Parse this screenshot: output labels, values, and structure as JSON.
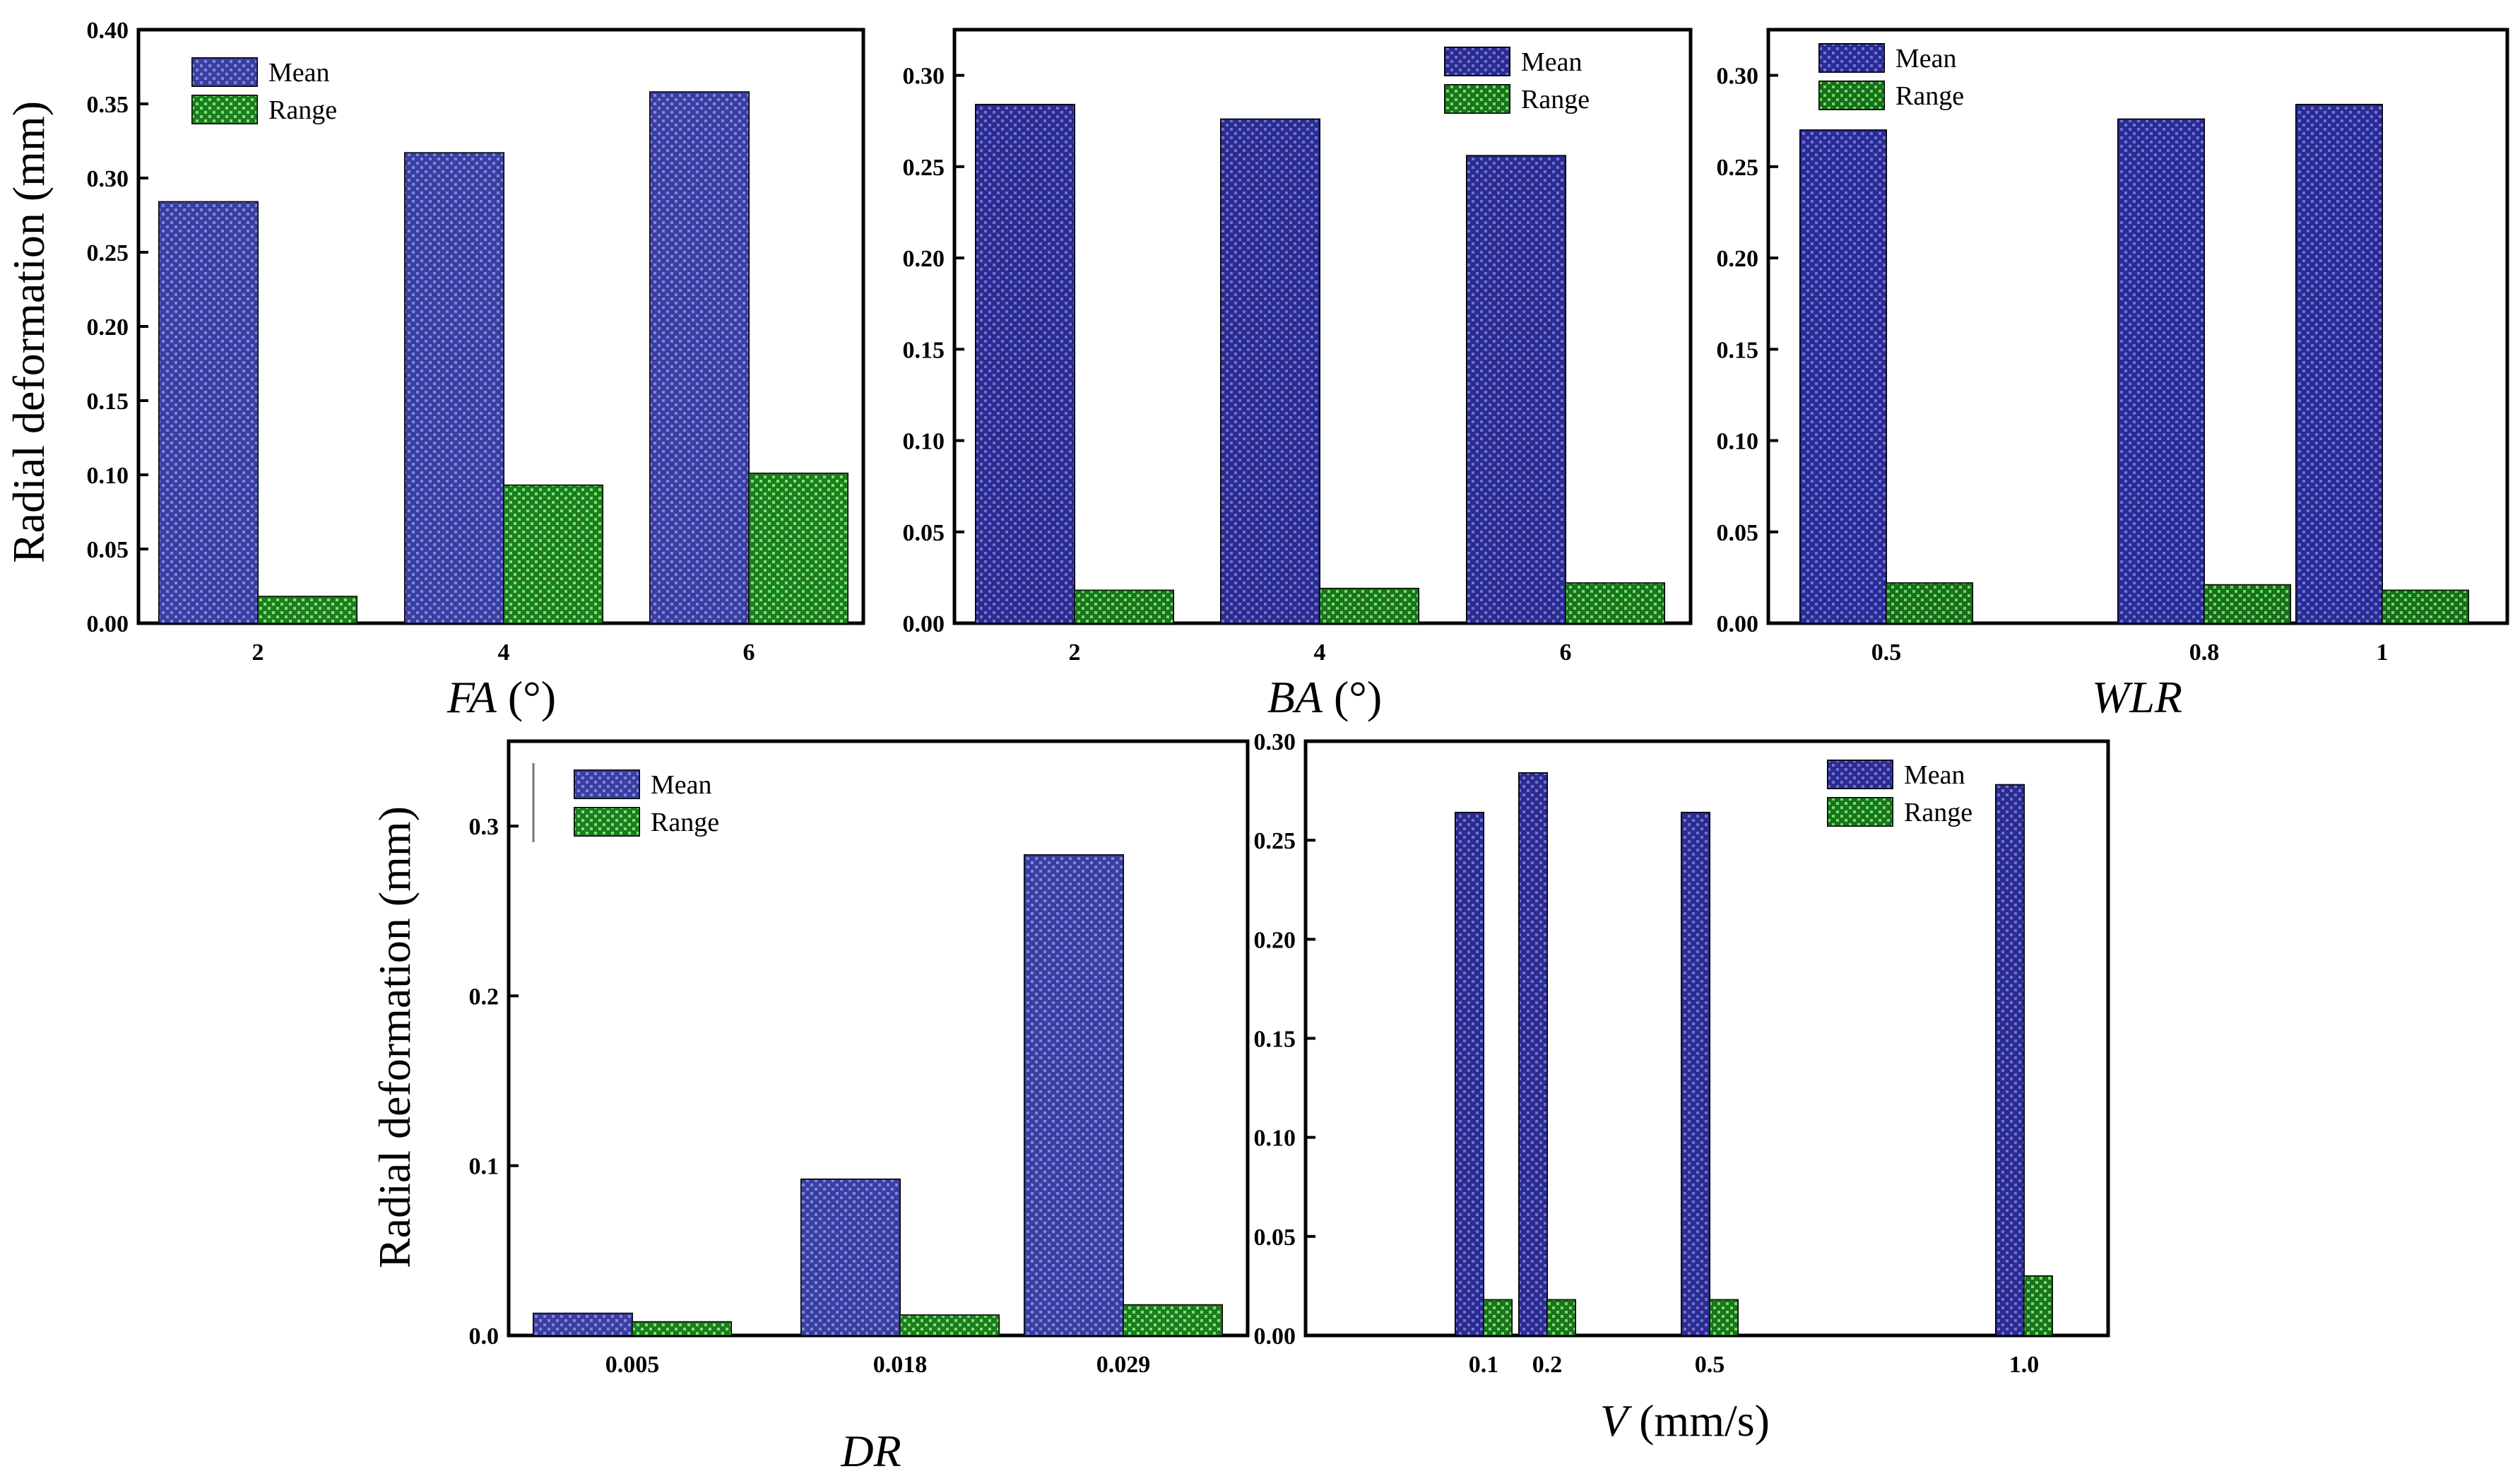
{
  "figure": {
    "ylabel": "Radial deformation (mm)"
  },
  "chart_data": [
    {
      "type": "bar",
      "id": "FA",
      "xlabel_var": "FA",
      "xlabel_unit": "(°)",
      "ylabel": "Radial deformation (mm)",
      "categories": [
        "2",
        "4",
        "6"
      ],
      "series": [
        {
          "name": "Mean",
          "values": [
            0.284,
            0.317,
            0.358
          ],
          "color": "#5a63d8"
        },
        {
          "name": "Range",
          "values": [
            0.018,
            0.093,
            0.101
          ],
          "color": "#3fd03f"
        }
      ],
      "ylim": [
        0,
        0.4
      ],
      "yticks": [
        "0.00",
        "0.05",
        "0.10",
        "0.15",
        "0.20",
        "0.25",
        "0.30",
        "0.35",
        "0.40"
      ],
      "legend": [
        "Mean",
        "Range"
      ],
      "legend_position": "top-left"
    },
    {
      "type": "bar",
      "id": "BA",
      "xlabel_var": "BA",
      "xlabel_unit": "(°)",
      "ylabel": "",
      "categories": [
        "2",
        "4",
        "6"
      ],
      "series": [
        {
          "name": "Mean",
          "values": [
            0.284,
            0.276,
            0.256
          ],
          "color": "#2f2fa8"
        },
        {
          "name": "Range",
          "values": [
            0.018,
            0.019,
            0.022
          ],
          "color": "#35b835"
        }
      ],
      "ylim": [
        0,
        0.325
      ],
      "yticks": [
        "0.00",
        "0.05",
        "0.10",
        "0.15",
        "0.20",
        "0.25",
        "0.30"
      ],
      "legend": [
        "Mean",
        "Range"
      ],
      "legend_position": "top-right"
    },
    {
      "type": "bar",
      "id": "WLR",
      "xlabel_var": "WLR",
      "xlabel_unit": "",
      "ylabel": "",
      "categories": [
        "0.5",
        "0.8",
        "1"
      ],
      "series": [
        {
          "name": "Mean",
          "values": [
            0.27,
            0.276,
            0.284
          ],
          "color": "#2a2fb8"
        },
        {
          "name": "Range",
          "values": [
            0.022,
            0.021,
            0.018
          ],
          "color": "#2fa82f"
        }
      ],
      "ylim": [
        0,
        0.325
      ],
      "yticks": [
        "0.00",
        "0.05",
        "0.10",
        "0.15",
        "0.20",
        "0.25",
        "0.30"
      ],
      "legend": [
        "Mean",
        "Range"
      ],
      "legend_position": "top-left"
    },
    {
      "type": "bar",
      "id": "DR",
      "xlabel_var": "DR",
      "xlabel_unit": "",
      "ylabel": "Radial deformation (mm)",
      "categories": [
        "0.005",
        "0.018",
        "0.029"
      ],
      "series": [
        {
          "name": "Mean",
          "values": [
            0.013,
            0.092,
            0.283
          ],
          "color": "#5a63d8"
        },
        {
          "name": "Range",
          "values": [
            0.008,
            0.012,
            0.018
          ],
          "color": "#3fd03f"
        }
      ],
      "ylim": [
        0,
        0.35
      ],
      "yticks": [
        "0.0",
        "0.1",
        "0.2",
        "0.3"
      ],
      "legend": [
        "Mean",
        "Range"
      ],
      "legend_position": "top-left"
    },
    {
      "type": "bar",
      "id": "V",
      "xlabel_var": "V",
      "xlabel_unit": "(mm/s)",
      "ylabel": "",
      "categories": [
        "0.1",
        "0.2",
        "0.5",
        "1.0"
      ],
      "x_numeric": [
        0.1,
        0.2,
        0.5,
        1.0
      ],
      "series": [
        {
          "name": "Mean",
          "values": [
            0.264,
            0.284,
            0.264,
            0.278
          ],
          "color": "#2f2fa8"
        },
        {
          "name": "Range",
          "values": [
            0.018,
            0.018,
            0.018,
            0.03
          ],
          "color": "#35b835"
        }
      ],
      "ylim": [
        0,
        0.3
      ],
      "yticks": [
        "0.00",
        "0.05",
        "0.10",
        "0.15",
        "0.20",
        "0.25",
        "0.30"
      ],
      "legend": [
        "Mean",
        "Range"
      ],
      "legend_position": "top-right"
    }
  ]
}
